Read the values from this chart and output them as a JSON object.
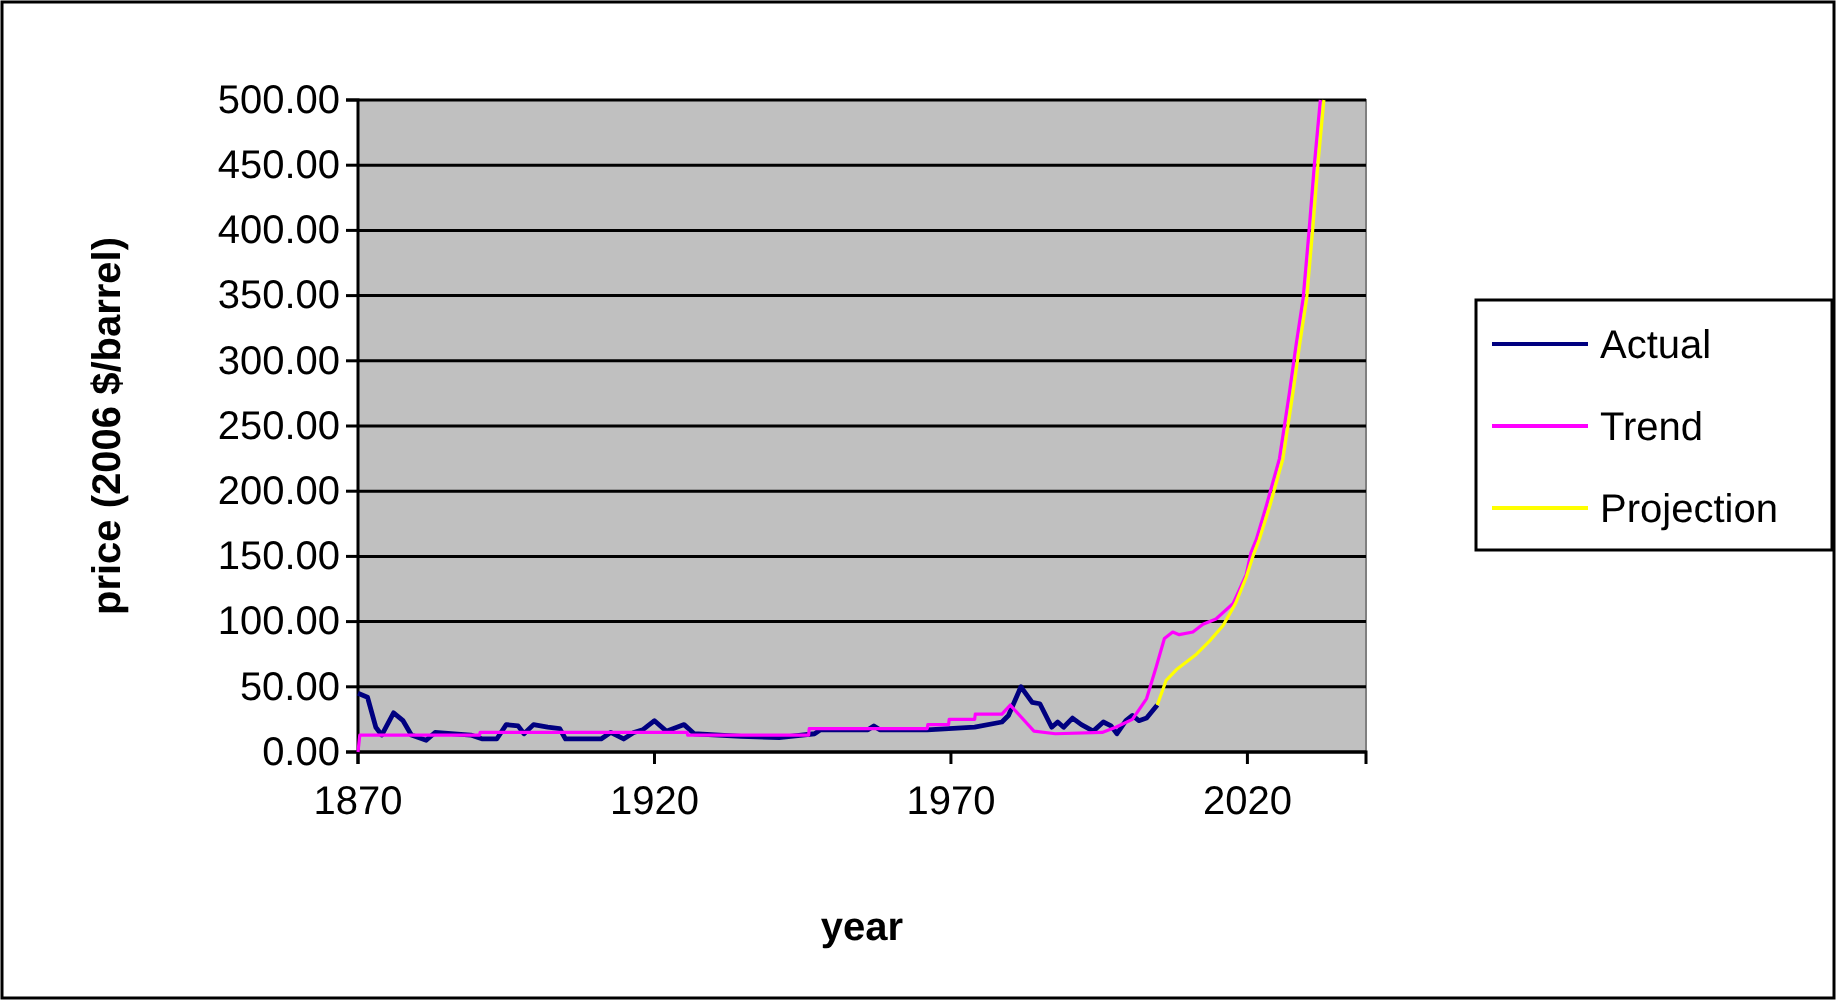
{
  "chart_data": {
    "type": "line",
    "xlabel": "year",
    "ylabel": "price (2006 $/barrel)",
    "xlim": [
      1870,
      2040
    ],
    "xticks": [
      1870,
      1920,
      1970,
      2020
    ],
    "ylim": [
      0,
      500
    ],
    "yticks": [
      {
        "value": 0,
        "label": "0.00"
      },
      {
        "value": 50,
        "label": "50.00"
      },
      {
        "value": 100,
        "label": "100.00"
      },
      {
        "value": 150,
        "label": "150.00"
      },
      {
        "value": 200,
        "label": "200.00"
      },
      {
        "value": 250,
        "label": "250.00"
      },
      {
        "value": 300,
        "label": "300.00"
      },
      {
        "value": 350,
        "label": "350.00"
      },
      {
        "value": 400,
        "label": "400.00"
      },
      {
        "value": 450,
        "label": "450.00"
      },
      {
        "value": 500,
        "label": "500.00"
      }
    ],
    "grid": "y",
    "legend": "right",
    "marker": "none",
    "line_style": "solid",
    "series": [
      {
        "name": "Actual",
        "color": "#000080",
        "x": [
          1870,
          1871.6,
          1873,
          1874,
          1876,
          1877.6,
          1879,
          1881.5,
          1883,
          1889,
          1891,
          1893.4,
          1895,
          1897,
          1898,
          1899.6,
          1902,
          1904,
          1905,
          1908.6,
          1911,
          1912.6,
          1914.8,
          1916.5,
          1918,
          1920,
          1922,
          1925,
          1926.7,
          1934.6,
          1941,
          1947,
          1948,
          1956,
          1957,
          1958,
          1966,
          1974,
          1978.6,
          1979.7,
          1981.8,
          1983.7,
          1985,
          1987,
          1988,
          1989,
          1990.5,
          1992,
          1994,
          1995.7,
          1997,
          1998,
          1999.5,
          2000.6,
          2001.7,
          2003,
          2004.8
        ],
        "values": [
          45,
          42,
          19,
          13,
          30,
          24,
          13,
          9,
          15,
          13,
          10,
          10,
          21,
          20,
          14,
          21,
          19,
          18,
          10,
          10,
          10,
          15,
          10,
          15,
          17,
          24,
          16,
          21,
          14,
          12,
          11,
          14,
          17,
          17,
          20,
          17,
          17,
          19,
          23,
          28,
          50,
          38,
          37,
          19,
          23,
          19,
          26,
          21,
          16,
          23,
          20,
          14,
          24,
          28,
          24,
          26,
          36
        ]
      },
      {
        "name": "Trend",
        "color": "#ff00ff",
        "x": [
          1870,
          1870.3,
          1890.5,
          1890.6,
          1925.5,
          1925.6,
          1946,
          1946.1,
          1966,
          1966.1,
          1969.6,
          1969.7,
          1974,
          1974.1,
          1978.6,
          1980,
          1980.6,
          1984,
          1987.6,
          1995.5,
          1997.8,
          2000.6,
          2003,
          2004.6,
          2006,
          2007.4,
          2008.5,
          2010.8,
          2012.5,
          2014.7,
          2017.6,
          2019.8,
          2020.6,
          2021.5,
          2023.2,
          2025.4,
          2027.1,
          2028.2,
          2029.4,
          2030.4,
          2031.3,
          2032.3
        ],
        "values": [
          0,
          13,
          13,
          15,
          15,
          13,
          13,
          18,
          18,
          21,
          21,
          25,
          25,
          29,
          29,
          36,
          33,
          16,
          14,
          15,
          19,
          25,
          41,
          65,
          87,
          92,
          90,
          92,
          98,
          102,
          114,
          136,
          153,
          163,
          189,
          225,
          276,
          312,
          348,
          400,
          451,
          500
        ]
      },
      {
        "name": "Projection",
        "color": "#ffff00",
        "x": [
          2004.8,
          2006.3,
          2008,
          2009.7,
          2011.4,
          2013.6,
          2015.9,
          2018,
          2019.8,
          2021,
          2022,
          2023.8,
          2026,
          2027.7,
          2028.8,
          2030,
          2031,
          2031.9,
          2032.9
        ],
        "values": [
          36,
          55,
          63,
          69,
          75,
          85,
          97,
          114,
          134,
          151,
          163,
          189,
          225,
          276,
          312,
          348,
          400,
          451,
          500
        ]
      }
    ]
  }
}
